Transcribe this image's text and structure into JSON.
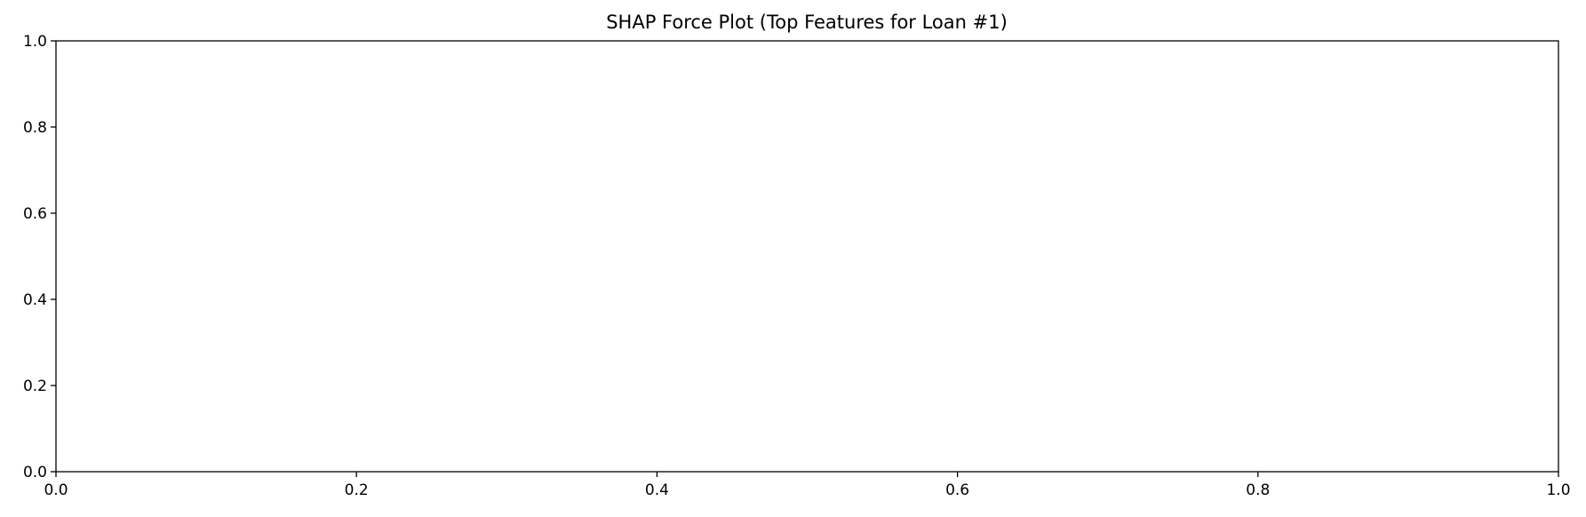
{
  "chart_data": {
    "type": "scatter",
    "title": "SHAP Force Plot (Top Features for Loan #1)",
    "xlabel": "",
    "ylabel": "",
    "xlim": [
      0.0,
      1.0
    ],
    "ylim": [
      0.0,
      1.0
    ],
    "xticks": [
      "0.0",
      "0.2",
      "0.4",
      "0.6",
      "0.8",
      "1.0"
    ],
    "yticks": [
      "0.0",
      "0.2",
      "0.4",
      "0.6",
      "0.8",
      "1.0"
    ],
    "series": [],
    "grid": false,
    "legend": false,
    "colors": {
      "axis": "#000000",
      "background": "#ffffff"
    }
  }
}
